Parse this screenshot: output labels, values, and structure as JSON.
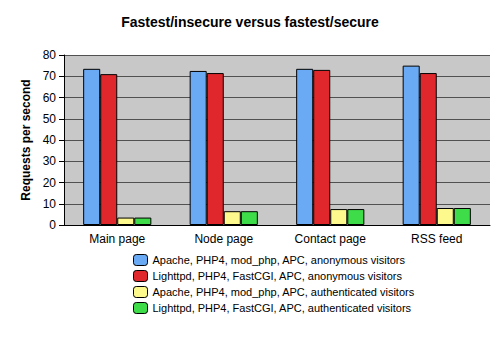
{
  "chart_data": {
    "type": "bar",
    "title": "Fastest/insecure versus fastest/secure",
    "y_label": "Requests per second",
    "categories": [
      "Main page",
      "Node page",
      "Contact page",
      "RSS feed"
    ],
    "series": [
      {
        "name": "Apache, PHP4, mod_php, APC, anonymous visitors",
        "color": "#6aaaf5",
        "values": [
          73.5,
          72.5,
          73.5,
          75
        ]
      },
      {
        "name": "Lighttpd, PHP4, FastCGI, APC, anonymous visitors",
        "color": "#e0282c",
        "values": [
          71,
          71.5,
          73,
          71.5
        ]
      },
      {
        "name": "Apache, PHP4, mod_php, APC, authenticated visitors",
        "color": "#fdf98c",
        "values": [
          3.5,
          6.5,
          7.5,
          8
        ]
      },
      {
        "name": "Lighttpd, PHP4, FastCGI, APC, authenticated visitors",
        "color": "#3fdc4a",
        "values": [
          3.5,
          6.5,
          7.5,
          8
        ]
      }
    ],
    "ylim": [
      0,
      80
    ],
    "yticks": [
      0,
      10,
      20,
      30,
      40,
      50,
      60,
      70,
      80
    ],
    "grid": true,
    "legend": "bottom"
  }
}
